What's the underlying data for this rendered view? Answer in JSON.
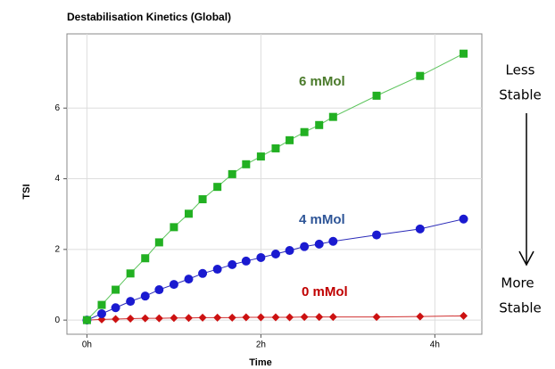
{
  "chart_data": {
    "type": "line",
    "title": "Destabilisation Kinetics (Global)",
    "x_label": "Time",
    "y_label": "TSI",
    "x": [
      0,
      0.17,
      0.33,
      0.5,
      0.67,
      0.83,
      1.0,
      1.17,
      1.33,
      1.5,
      1.67,
      1.83,
      2.0,
      2.17,
      2.33,
      2.5,
      2.67,
      2.83,
      3.33,
      3.83,
      4.33
    ],
    "series": [
      {
        "name": "6 mMol",
        "color": "#22b022",
        "line_color": "#5cc45c",
        "label_color": "#4a7a2a",
        "marker": "square",
        "values": [
          0,
          0.43,
          0.86,
          1.32,
          1.75,
          2.2,
          2.63,
          3.01,
          3.42,
          3.77,
          4.13,
          4.41,
          4.63,
          4.86,
          5.09,
          5.32,
          5.52,
          5.75,
          6.35,
          6.91,
          7.54
        ]
      },
      {
        "name": "4 mMol",
        "color": "#1a1ad0",
        "line_color": "#2a2ab8",
        "label_color": "#2e5597",
        "marker": "circle",
        "values": [
          0,
          0.18,
          0.35,
          0.53,
          0.68,
          0.86,
          1.01,
          1.16,
          1.32,
          1.44,
          1.57,
          1.67,
          1.77,
          1.87,
          1.97,
          2.08,
          2.15,
          2.23,
          2.41,
          2.58,
          2.86
        ]
      },
      {
        "name": "0 mMol",
        "color": "#cc1111",
        "line_color": "#d03030",
        "label_color": "#c00000",
        "marker": "diamond",
        "values": [
          0,
          0.02,
          0.03,
          0.04,
          0.05,
          0.05,
          0.06,
          0.06,
          0.07,
          0.07,
          0.07,
          0.08,
          0.08,
          0.08,
          0.08,
          0.09,
          0.09,
          0.09,
          0.09,
          0.1,
          0.12
        ]
      }
    ],
    "xlim": [
      -0.23,
      4.54
    ],
    "ylim": [
      -0.4,
      8.1
    ],
    "xticks": [
      {
        "value": 0,
        "label": "0h"
      },
      {
        "value": 2,
        "label": "2h"
      },
      {
        "value": 4,
        "label": "4h"
      }
    ],
    "yticks": [
      0,
      2,
      4,
      6
    ],
    "grid": true,
    "side_top": [
      "Less",
      "Stable"
    ],
    "side_bottom": [
      "More",
      "Stable"
    ]
  }
}
